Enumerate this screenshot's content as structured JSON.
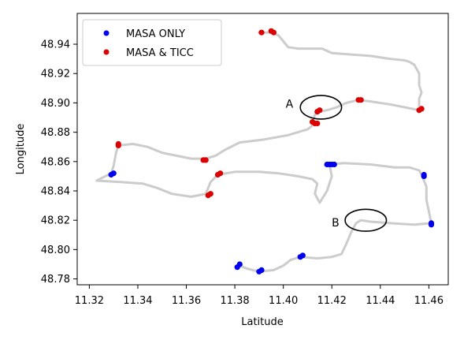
{
  "chart_data": {
    "type": "scatter",
    "xlabel": "Latitude",
    "ylabel": "Longitude",
    "xlim": [
      11.315,
      11.468
    ],
    "ylim": [
      48.776,
      48.961
    ],
    "x_ticks": [
      "11.32",
      "11.34",
      "11.36",
      "11.38",
      "11.40",
      "11.42",
      "11.44",
      "11.46"
    ],
    "y_ticks": [
      "48.78",
      "48.80",
      "48.82",
      "48.84",
      "48.86",
      "48.88",
      "48.90",
      "48.92",
      "48.94"
    ],
    "grid": false,
    "legend_position": "top-left",
    "track": {
      "color": "#cccccc",
      "points": [
        [
          11.39,
          48.948
        ],
        [
          11.395,
          48.948
        ],
        [
          11.398,
          48.946
        ],
        [
          11.4,
          48.942
        ],
        [
          11.402,
          48.938
        ],
        [
          11.406,
          48.937
        ],
        [
          11.416,
          48.937
        ],
        [
          11.42,
          48.934
        ],
        [
          11.428,
          48.933
        ],
        [
          11.436,
          48.932
        ],
        [
          11.444,
          48.93
        ],
        [
          11.45,
          48.929
        ],
        [
          11.452,
          48.928
        ],
        [
          11.454,
          48.926
        ],
        [
          11.455,
          48.923
        ],
        [
          11.456,
          48.92
        ],
        [
          11.456,
          48.912
        ],
        [
          11.457,
          48.907
        ],
        [
          11.456,
          48.903
        ],
        [
          11.456,
          48.895
        ],
        [
          11.45,
          48.897
        ],
        [
          11.444,
          48.899
        ],
        [
          11.436,
          48.901
        ],
        [
          11.431,
          48.902
        ],
        [
          11.426,
          48.9
        ],
        [
          11.422,
          48.897
        ],
        [
          11.418,
          48.895
        ],
        [
          11.415,
          48.894
        ],
        [
          11.413,
          48.892
        ],
        [
          11.412,
          48.887
        ],
        [
          11.413,
          48.886
        ],
        [
          11.41,
          48.882
        ],
        [
          11.402,
          48.878
        ],
        [
          11.392,
          48.875
        ],
        [
          11.382,
          48.873
        ],
        [
          11.376,
          48.868
        ],
        [
          11.372,
          48.864
        ],
        [
          11.368,
          48.862
        ],
        [
          11.362,
          48.862
        ],
        [
          11.356,
          48.864
        ],
        [
          11.35,
          48.866
        ],
        [
          11.344,
          48.87
        ],
        [
          11.338,
          48.872
        ],
        [
          11.332,
          48.871
        ],
        [
          11.331,
          48.866
        ],
        [
          11.33,
          48.857
        ],
        [
          11.329,
          48.852
        ],
        [
          11.323,
          48.847
        ],
        [
          11.333,
          48.846
        ],
        [
          11.342,
          48.845
        ],
        [
          11.348,
          48.842
        ],
        [
          11.354,
          48.838
        ],
        [
          11.362,
          48.836
        ],
        [
          11.368,
          48.838
        ],
        [
          11.37,
          48.846
        ],
        [
          11.373,
          48.851
        ],
        [
          11.38,
          48.853
        ],
        [
          11.39,
          48.853
        ],
        [
          11.398,
          48.852
        ],
        [
          11.406,
          48.85
        ],
        [
          11.412,
          48.848
        ],
        [
          11.414,
          48.845
        ],
        [
          11.413,
          48.838
        ],
        [
          11.415,
          48.832
        ],
        [
          11.418,
          48.84
        ],
        [
          11.42,
          48.85
        ],
        [
          11.419,
          48.858
        ],
        [
          11.425,
          48.859
        ],
        [
          11.436,
          48.858
        ],
        [
          11.446,
          48.856
        ],
        [
          11.452,
          48.856
        ],
        [
          11.456,
          48.854
        ],
        [
          11.457,
          48.851
        ],
        [
          11.459,
          48.843
        ],
        [
          11.459,
          48.834
        ],
        [
          11.46,
          48.826
        ],
        [
          11.461,
          48.818
        ],
        [
          11.454,
          48.817
        ],
        [
          11.444,
          48.818
        ],
        [
          11.436,
          48.819
        ],
        [
          11.432,
          48.82
        ],
        [
          11.43,
          48.818
        ],
        [
          11.428,
          48.812
        ],
        [
          11.426,
          48.804
        ],
        [
          11.424,
          48.797
        ],
        [
          11.42,
          48.795
        ],
        [
          11.414,
          48.794
        ],
        [
          11.407,
          48.795
        ],
        [
          11.403,
          48.793
        ],
        [
          11.4,
          48.789
        ],
        [
          11.396,
          48.786
        ],
        [
          11.39,
          48.785
        ],
        [
          11.385,
          48.787
        ],
        [
          11.382,
          48.789
        ]
      ]
    },
    "series": [
      {
        "name": "MASA ONLY",
        "color": "#0000ee",
        "points": [
          [
            11.329,
            48.851
          ],
          [
            11.33,
            48.852
          ],
          [
            11.381,
            48.788
          ],
          [
            11.382,
            48.79
          ],
          [
            11.39,
            48.785
          ],
          [
            11.391,
            48.786
          ],
          [
            11.407,
            48.795
          ],
          [
            11.408,
            48.796
          ],
          [
            11.418,
            48.858
          ],
          [
            11.419,
            48.858
          ],
          [
            11.42,
            48.858
          ],
          [
            11.421,
            48.858
          ],
          [
            11.458,
            48.85
          ],
          [
            11.458,
            48.851
          ],
          [
            11.461,
            48.817
          ],
          [
            11.461,
            48.818
          ]
        ]
      },
      {
        "name": "MASA & TICC",
        "color": "#dd0000",
        "points": [
          [
            11.391,
            48.948
          ],
          [
            11.395,
            48.949
          ],
          [
            11.396,
            48.948
          ],
          [
            11.414,
            48.894
          ],
          [
            11.415,
            48.895
          ],
          [
            11.412,
            48.887
          ],
          [
            11.413,
            48.886
          ],
          [
            11.414,
            48.886
          ],
          [
            11.431,
            48.902
          ],
          [
            11.432,
            48.902
          ],
          [
            11.456,
            48.895
          ],
          [
            11.457,
            48.896
          ],
          [
            11.332,
            48.871
          ],
          [
            11.332,
            48.872
          ],
          [
            11.367,
            48.861
          ],
          [
            11.368,
            48.861
          ],
          [
            11.373,
            48.851
          ],
          [
            11.374,
            48.852
          ],
          [
            11.369,
            48.837
          ],
          [
            11.37,
            48.838
          ]
        ]
      }
    ],
    "annotations": [
      {
        "label": "A",
        "center": [
          11.4155,
          48.897
        ],
        "rx": 0.0085,
        "ry": 0.008,
        "label_at": [
          11.4025,
          48.899
        ]
      },
      {
        "label": "B",
        "center": [
          11.434,
          48.82
        ],
        "rx": 0.0085,
        "ry": 0.0075,
        "label_at": [
          11.4215,
          48.818
        ]
      }
    ]
  }
}
